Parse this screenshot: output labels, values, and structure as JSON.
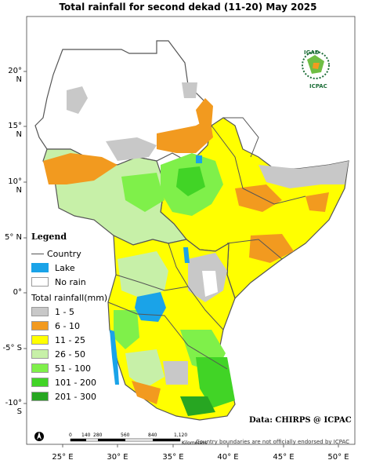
{
  "title": "Total rainfall  for  second dekad (11-20)  May 2025",
  "latitude_labels": [
    "20° N",
    "15° N",
    "10° N",
    "5° N",
    "0°",
    "-5° S",
    "-10° S"
  ],
  "longitude_labels": [
    "25° E",
    "30° E",
    "35° E",
    "40° E",
    "45° E",
    "50° E"
  ],
  "legend": {
    "title": "Legend",
    "country_label": "Country",
    "lake_label": "Lake",
    "no_rain_label": "No rain",
    "rainfall_title": "Total rainfall(mm)",
    "classes": [
      {
        "label": "1 - 5",
        "color": "#c8c8c8"
      },
      {
        "label": "6 - 10",
        "color": "#f29a1f"
      },
      {
        "label": "11 - 25",
        "color": "#ffff00"
      },
      {
        "label": "26 - 50",
        "color": "#c7f0a8"
      },
      {
        "label": "51 - 100",
        "color": "#7ff04a"
      },
      {
        "label": "101 - 200",
        "color": "#41d426"
      },
      {
        "label": "201 - 300",
        "color": "#27a622"
      }
    ],
    "lake_color": "#1aa3e8",
    "no_rain_color": "#ffffff",
    "country_line_color": "#555555"
  },
  "scale_bar": {
    "ticks": [
      "0",
      "140",
      "280",
      "560",
      "840",
      "1,120"
    ],
    "unit": "Kilometers"
  },
  "north_arrow_icon": "north-arrow-icon",
  "logo": {
    "org": "IGAD",
    "institution": "ICPAC"
  },
  "data_credit": "Data: CHIRPS @ ICPAC",
  "boundary_note": "Country boundaries are not officially endorsed by ICPAC"
}
